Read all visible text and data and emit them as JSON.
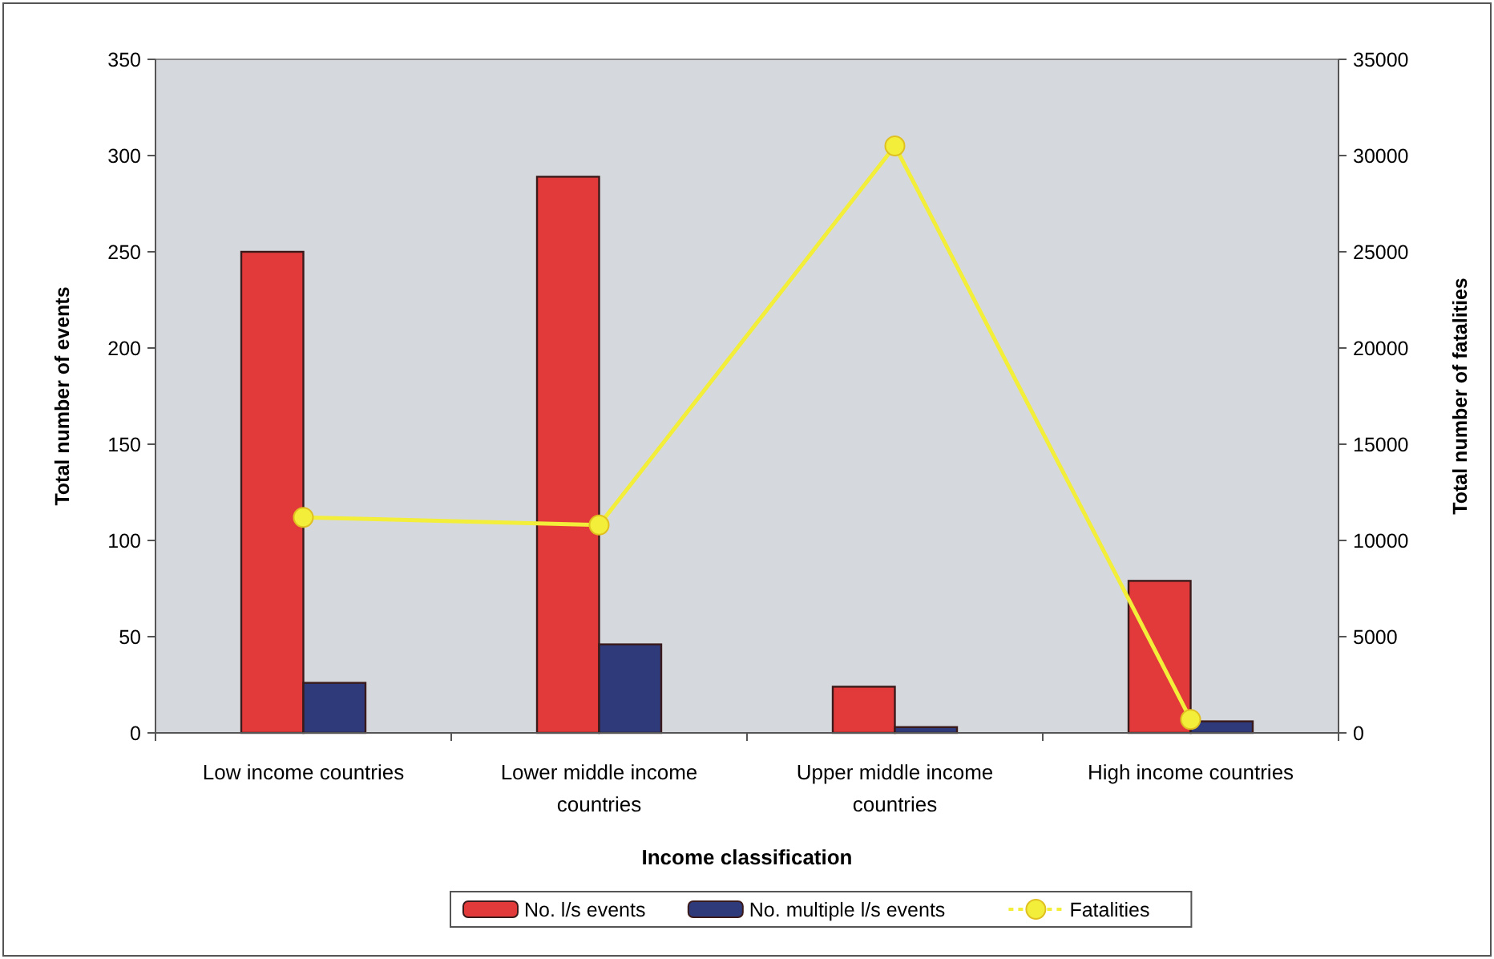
{
  "chart_data": {
    "type": "bar",
    "xlabel": "Income classification",
    "ylabel": "Total number of events",
    "y2label": "Total number of fatalities",
    "categories": [
      "Low income countries",
      "Lower middle income countries",
      "Upper middle income countries",
      "High income countries"
    ],
    "series": [
      {
        "name": "No. l/s events",
        "color": "#e23a3a",
        "values": [
          250,
          289,
          24,
          79
        ]
      },
      {
        "name": "No. multiple l/s events",
        "color": "#2e3a7a",
        "values": [
          26,
          46,
          3,
          6
        ]
      },
      {
        "name": "Fatalities",
        "type": "line",
        "axis": "y2",
        "color": "#f2ee3a",
        "marker": "circle",
        "values": [
          11200,
          10800,
          30500,
          700
        ]
      }
    ],
    "ylim": [
      0,
      350
    ],
    "yticks": [
      0,
      50,
      100,
      150,
      200,
      250,
      300,
      350
    ],
    "y2lim": [
      0,
      35000
    ],
    "y2ticks": [
      0,
      5000,
      10000,
      15000,
      20000,
      25000,
      30000,
      35000
    ],
    "legend": "bottom",
    "grid": false
  }
}
